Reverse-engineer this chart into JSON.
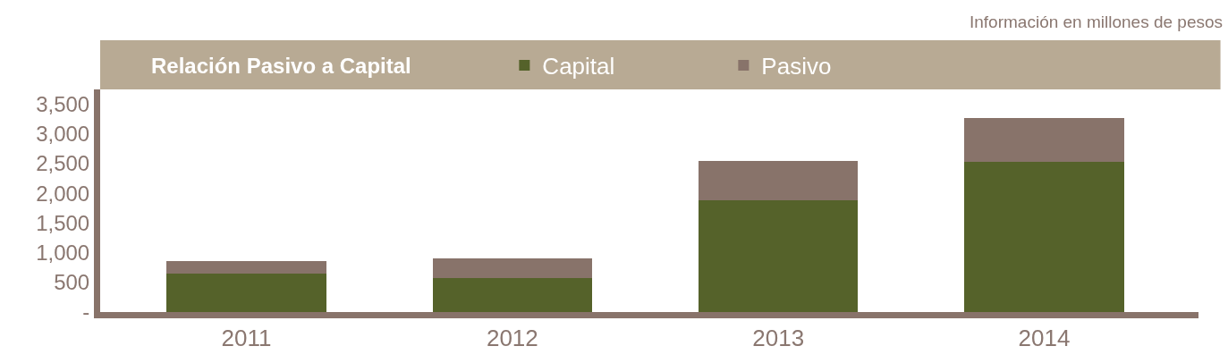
{
  "chart_data": {
    "type": "bar",
    "title": "Relación Pasivo a Capital",
    "subtitle": "Información en millones de pesos",
    "categories": [
      "2011",
      "2012",
      "2013",
      "2014"
    ],
    "stacked": true,
    "series": [
      {
        "name": "Capital",
        "color": "#55622a",
        "values": [
          650,
          570,
          1880,
          2530
        ]
      },
      {
        "name": "Pasivo",
        "color": "#88736a",
        "values": [
          210,
          330,
          660,
          740
        ]
      }
    ],
    "ylim": [
      0,
      3750
    ],
    "yticks": [
      {
        "value": 0,
        "label": "-"
      },
      {
        "value": 500,
        "label": "500"
      },
      {
        "value": 1000,
        "label": "1,000"
      },
      {
        "value": 1500,
        "label": "1,500"
      },
      {
        "value": 2000,
        "label": "2,000"
      },
      {
        "value": 2500,
        "label": "2,500"
      },
      {
        "value": 3000,
        "label": "3,000"
      },
      {
        "value": 3500,
        "label": "3,500"
      }
    ],
    "legend": "top"
  }
}
